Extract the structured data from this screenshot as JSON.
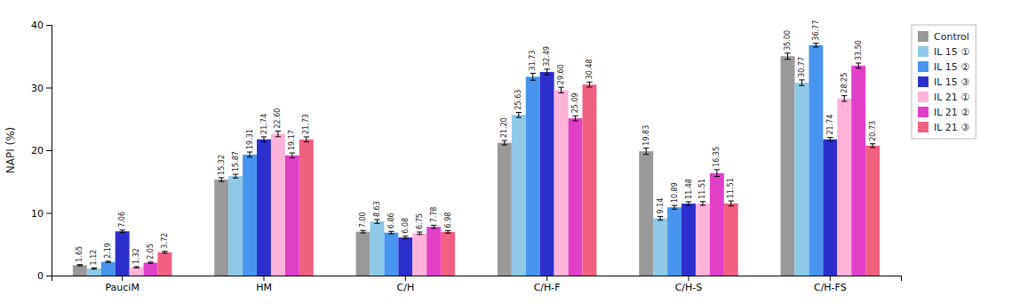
{
  "chart_data": {
    "type": "bar",
    "categories": [
      "PauciM",
      "HM",
      "C/H",
      "C/H-F",
      "C/H-S",
      "C/H-FS"
    ],
    "series": [
      {
        "name": "Control",
        "color": "#999999",
        "values": [
          1.65,
          15.32,
          7.0,
          21.2,
          19.83,
          35.0
        ],
        "errors": [
          0.1,
          0.3,
          0.2,
          0.35,
          0.5,
          0.5
        ],
        "value_labels": [
          "1.65",
          "15.32",
          "7.00",
          "21.20",
          "19.83",
          "35.00"
        ]
      },
      {
        "name": "IL 15 ①",
        "color": "#8ECAE6",
        "values": [
          1.12,
          15.87,
          8.63,
          25.63,
          9.14,
          30.77
        ],
        "errors": [
          0.1,
          0.3,
          0.3,
          0.4,
          0.3,
          0.45
        ],
        "value_labels": [
          "1.12",
          "15.87",
          "8.63",
          "25.63",
          "9.14",
          "30.77"
        ]
      },
      {
        "name": "IL 15 ②",
        "color": "#4895EF",
        "values": [
          2.19,
          19.31,
          6.86,
          31.73,
          10.89,
          36.77
        ],
        "errors": [
          0.1,
          0.4,
          0.2,
          0.55,
          0.3,
          0.3
        ],
        "value_labels": [
          "2.19",
          "19.31",
          "6.86",
          "31.73",
          "10.89",
          "36.77"
        ]
      },
      {
        "name": "IL 15 ③",
        "color": "#2D2FCC",
        "values": [
          7.06,
          21.74,
          6.08,
          32.49,
          11.48,
          21.74
        ],
        "errors": [
          0.2,
          0.4,
          0.2,
          0.45,
          0.3,
          0.3
        ],
        "value_labels": [
          "7.06",
          "21.74",
          "6.08",
          "32.49",
          "11.48",
          "21.74"
        ]
      },
      {
        "name": "IL 21 ①",
        "color": "#FFB3D9",
        "values": [
          1.32,
          22.6,
          6.75,
          29.6,
          11.51,
          28.25
        ],
        "errors": [
          0.1,
          0.45,
          0.2,
          0.45,
          0.3,
          0.45
        ],
        "value_labels": [
          "1.32",
          "22.60",
          "6.75",
          "29.60",
          "11.51",
          "28.25"
        ]
      },
      {
        "name": "IL 21 ②",
        "color": "#E040C8",
        "values": [
          2.05,
          19.17,
          7.78,
          25.09,
          16.35,
          33.5
        ],
        "errors": [
          0.1,
          0.4,
          0.25,
          0.4,
          0.55,
          0.4
        ],
        "value_labels": [
          "2.05",
          "19.17",
          "7.78",
          "25.09",
          "16.35",
          "33.50"
        ]
      },
      {
        "name": "IL 21 ③",
        "color": "#F06080",
        "values": [
          3.72,
          21.73,
          6.98,
          30.48,
          11.51,
          20.73
        ],
        "errors": [
          0.15,
          0.4,
          0.2,
          0.4,
          0.4,
          0.3
        ],
        "value_labels": [
          "3.72",
          "21.73",
          "6.98",
          "30.48",
          "11.51",
          "20.73"
        ]
      }
    ],
    "ylabel": "NAPI (%)",
    "ylim": [
      0,
      40
    ],
    "yticks": [
      0,
      10,
      20,
      30,
      40
    ],
    "data_labels": true,
    "grid": false,
    "legend": "right"
  }
}
